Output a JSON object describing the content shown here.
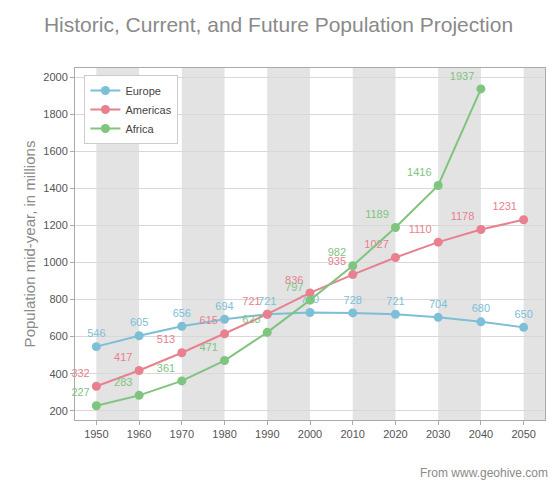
{
  "chart_data": {
    "type": "line",
    "title": "Historic, Current, and Future Population Projection",
    "y_label": "Population mid-year, in millions",
    "annotations": [
      "From www.geohive.com"
    ],
    "x": [
      1950,
      1960,
      1970,
      1980,
      1990,
      2000,
      2010,
      2020,
      2030,
      2040,
      2050
    ],
    "series": [
      {
        "name": "Europe",
        "color": "#7cbfd6",
        "values": [
          546,
          605,
          656,
          694,
          721,
          730,
          728,
          721,
          704,
          680,
          650
        ]
      },
      {
        "name": "Americas",
        "color": "#e8808f",
        "values": [
          332,
          417,
          513,
          615,
          721,
          836,
          935,
          1027,
          1110,
          1178,
          1231
        ]
      },
      {
        "name": "Africa",
        "color": "#7fc47f",
        "values": [
          227,
          283,
          361,
          471,
          623,
          797,
          982,
          1189,
          1416,
          1937,
          null
        ]
      }
    ],
    "xlim": [
      1945,
      2055
    ],
    "xticks": [
      1950,
      1960,
      1970,
      1980,
      1990,
      2000,
      2010,
      2020,
      2030,
      2040,
      2050
    ],
    "ylim": [
      150,
      2050
    ],
    "yticks": [
      200,
      400,
      600,
      800,
      1000,
      1200,
      1400,
      1600,
      1800,
      2000
    ],
    "grid": true,
    "legend": "top left",
    "data_labels": true,
    "marker": "circle",
    "line_style": "solid"
  }
}
